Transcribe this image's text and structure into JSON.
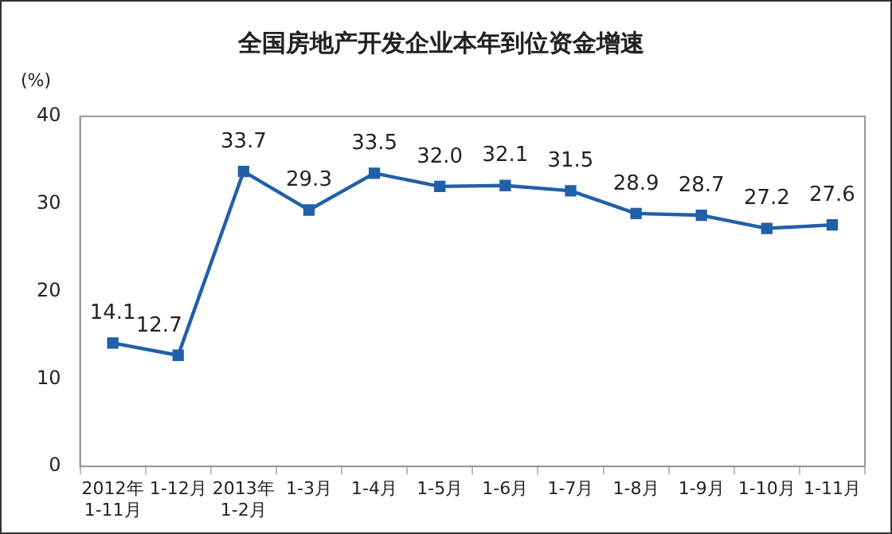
{
  "chart_data": {
    "type": "line",
    "title": "全国房地产开发企业本年到位资金增速",
    "ylabel": "(%)",
    "categories": [
      "2012年\n1-11月",
      "1-12月",
      "2013年\n1-2月",
      "1-3月",
      "1-4月",
      "1-5月",
      "1-6月",
      "1-7月",
      "1-8月",
      "1-9月",
      "1-10月",
      "1-11月"
    ],
    "series": [
      {
        "color": "#2060a8",
        "values": [
          14.1,
          12.7,
          33.7,
          29.3,
          33.5,
          32.0,
          32.1,
          31.5,
          28.9,
          28.7,
          27.2,
          27.6
        ]
      }
    ],
    "ylim": [
      0,
      40
    ],
    "yticks": [
      0,
      10,
      20,
      30,
      40
    ],
    "grid": false,
    "legend": false,
    "marker": "square",
    "line_style": "solid",
    "value_labels": [
      "14.1",
      "12.7",
      "33.7",
      "29.3",
      "33.5",
      "32.0",
      "32.1",
      "31.5",
      "28.9",
      "28.7",
      "27.2",
      "27.6"
    ]
  }
}
